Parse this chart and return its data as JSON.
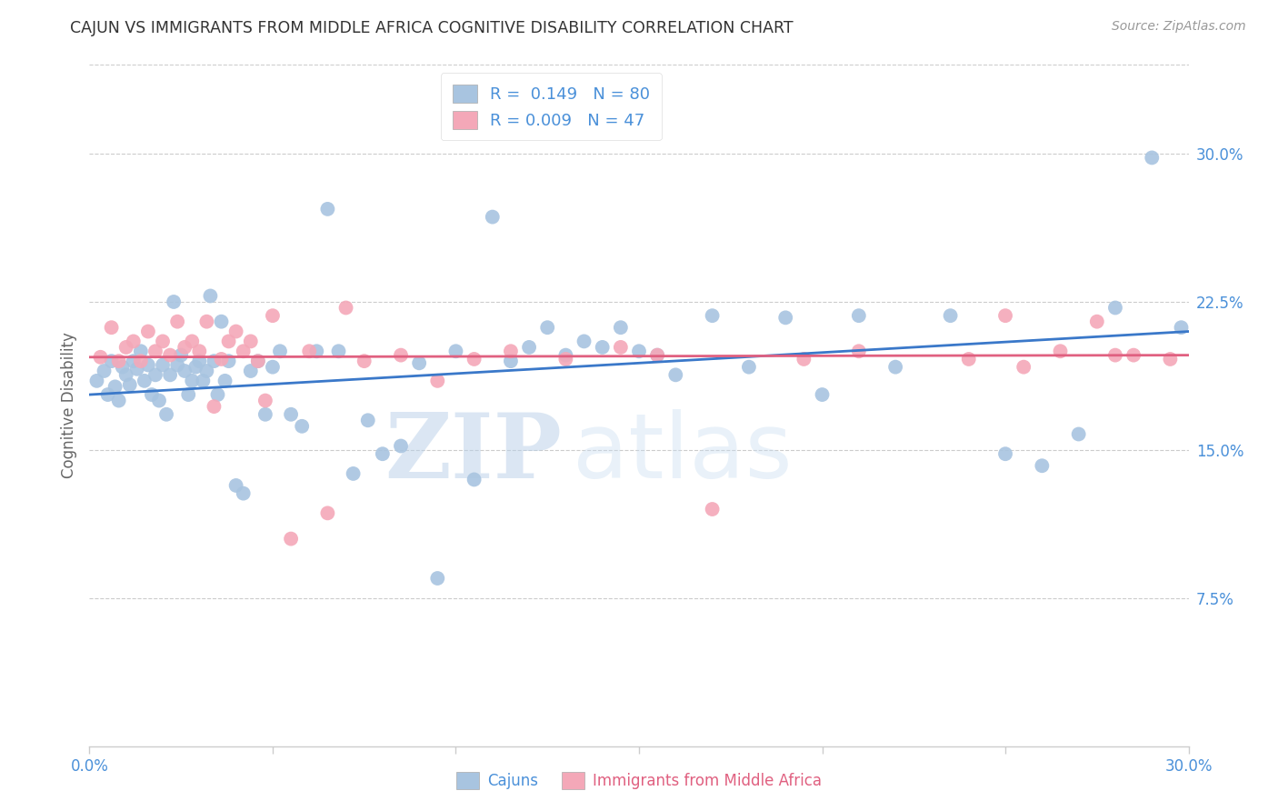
{
  "title": "CAJUN VS IMMIGRANTS FROM MIDDLE AFRICA COGNITIVE DISABILITY CORRELATION CHART",
  "source": "Source: ZipAtlas.com",
  "ylabel": "Cognitive Disability",
  "right_yticks": [
    "30.0%",
    "22.5%",
    "15.0%",
    "7.5%"
  ],
  "right_ytick_vals": [
    0.3,
    0.225,
    0.15,
    0.075
  ],
  "xlim": [
    0.0,
    0.3
  ],
  "ylim": [
    0.0,
    0.345
  ],
  "cajun_color": "#a8c4e0",
  "immigrant_color": "#f4a8b8",
  "cajun_line_color": "#3a78c9",
  "immigrant_line_color": "#e06080",
  "legend_R1": "0.149",
  "legend_N1": "80",
  "legend_R2": "0.009",
  "legend_N2": "47",
  "watermark_zip": "ZIP",
  "watermark_atlas": "atlas",
  "cajun_scatter_x": [
    0.002,
    0.004,
    0.005,
    0.006,
    0.007,
    0.008,
    0.009,
    0.01,
    0.011,
    0.012,
    0.013,
    0.014,
    0.015,
    0.016,
    0.017,
    0.018,
    0.019,
    0.02,
    0.021,
    0.022,
    0.023,
    0.024,
    0.025,
    0.026,
    0.027,
    0.028,
    0.029,
    0.03,
    0.031,
    0.032,
    0.033,
    0.034,
    0.035,
    0.036,
    0.037,
    0.038,
    0.04,
    0.042,
    0.044,
    0.046,
    0.048,
    0.05,
    0.052,
    0.055,
    0.058,
    0.062,
    0.065,
    0.068,
    0.072,
    0.076,
    0.08,
    0.085,
    0.09,
    0.095,
    0.1,
    0.105,
    0.11,
    0.115,
    0.12,
    0.125,
    0.13,
    0.135,
    0.14,
    0.145,
    0.15,
    0.155,
    0.16,
    0.17,
    0.18,
    0.19,
    0.2,
    0.21,
    0.22,
    0.235,
    0.25,
    0.26,
    0.27,
    0.28,
    0.29,
    0.298
  ],
  "cajun_scatter_y": [
    0.185,
    0.19,
    0.178,
    0.195,
    0.182,
    0.175,
    0.192,
    0.188,
    0.183,
    0.195,
    0.191,
    0.2,
    0.185,
    0.193,
    0.178,
    0.188,
    0.175,
    0.193,
    0.168,
    0.188,
    0.225,
    0.193,
    0.198,
    0.19,
    0.178,
    0.185,
    0.192,
    0.195,
    0.185,
    0.19,
    0.228,
    0.195,
    0.178,
    0.215,
    0.185,
    0.195,
    0.132,
    0.128,
    0.19,
    0.195,
    0.168,
    0.192,
    0.2,
    0.168,
    0.162,
    0.2,
    0.272,
    0.2,
    0.138,
    0.165,
    0.148,
    0.152,
    0.194,
    0.085,
    0.2,
    0.135,
    0.268,
    0.195,
    0.202,
    0.212,
    0.198,
    0.205,
    0.202,
    0.212,
    0.2,
    0.198,
    0.188,
    0.218,
    0.192,
    0.217,
    0.178,
    0.218,
    0.192,
    0.218,
    0.148,
    0.142,
    0.158,
    0.222,
    0.298,
    0.212
  ],
  "immigrant_scatter_x": [
    0.003,
    0.006,
    0.008,
    0.01,
    0.012,
    0.014,
    0.016,
    0.018,
    0.02,
    0.022,
    0.024,
    0.026,
    0.028,
    0.03,
    0.032,
    0.034,
    0.036,
    0.038,
    0.04,
    0.042,
    0.044,
    0.046,
    0.048,
    0.05,
    0.055,
    0.06,
    0.065,
    0.07,
    0.075,
    0.085,
    0.095,
    0.105,
    0.115,
    0.13,
    0.145,
    0.155,
    0.17,
    0.195,
    0.21,
    0.24,
    0.255,
    0.265,
    0.275,
    0.285,
    0.295,
    0.25,
    0.28
  ],
  "immigrant_scatter_y": [
    0.197,
    0.212,
    0.195,
    0.202,
    0.205,
    0.195,
    0.21,
    0.2,
    0.205,
    0.198,
    0.215,
    0.202,
    0.205,
    0.2,
    0.215,
    0.172,
    0.196,
    0.205,
    0.21,
    0.2,
    0.205,
    0.195,
    0.175,
    0.218,
    0.105,
    0.2,
    0.118,
    0.222,
    0.195,
    0.198,
    0.185,
    0.196,
    0.2,
    0.196,
    0.202,
    0.198,
    0.12,
    0.196,
    0.2,
    0.196,
    0.192,
    0.2,
    0.215,
    0.198,
    0.196,
    0.218,
    0.198
  ],
  "cajun_line_x0": 0.0,
  "cajun_line_x1": 0.3,
  "cajun_line_y0": 0.178,
  "cajun_line_y1": 0.21,
  "immigrant_line_x0": 0.0,
  "immigrant_line_x1": 0.3,
  "immigrant_line_y0": 0.197,
  "immigrant_line_y1": 0.198,
  "xtick_positions": [
    0.0,
    0.05,
    0.1,
    0.15,
    0.2,
    0.25,
    0.3
  ],
  "grid_color": "#cccccc",
  "spine_color": "#cccccc"
}
